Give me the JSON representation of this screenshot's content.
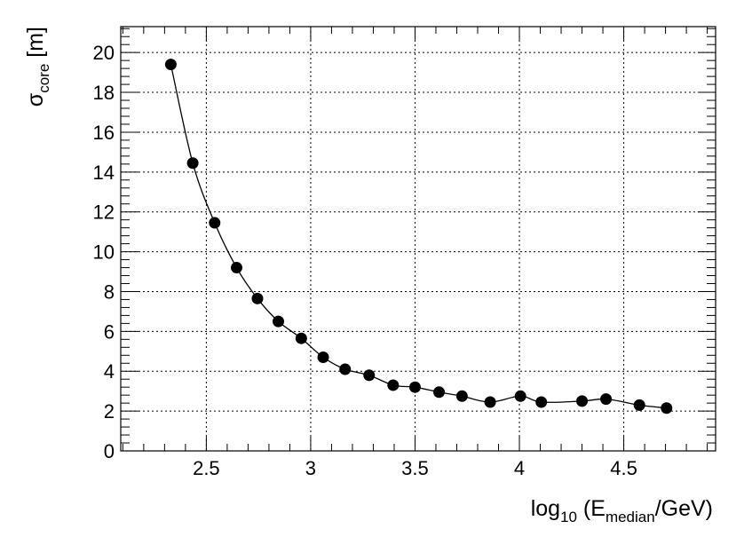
{
  "chart_data": {
    "type": "scatter",
    "title": "",
    "xlabel": {
      "base": "log",
      "sub1": "10",
      "mid": " (E",
      "sub2": "median",
      "end": "/GeV)"
    },
    "ylabel": {
      "base": "σ",
      "sub": "core",
      "end": " [m]"
    },
    "xlim": [
      2.09,
      4.94
    ],
    "ylim": [
      0,
      21.3
    ],
    "grid": true,
    "x_ticks": [
      {
        "value": 2.5,
        "label": "2.5"
      },
      {
        "value": 3.0,
        "label": "3"
      },
      {
        "value": 3.5,
        "label": "3.5"
      },
      {
        "value": 4.0,
        "label": "4"
      },
      {
        "value": 4.5,
        "label": "4.5"
      }
    ],
    "y_ticks": [
      {
        "value": 0,
        "label": "0"
      },
      {
        "value": 2,
        "label": "2"
      },
      {
        "value": 4,
        "label": "4"
      },
      {
        "value": 6,
        "label": "6"
      },
      {
        "value": 8,
        "label": "8"
      },
      {
        "value": 10,
        "label": "10"
      },
      {
        "value": 12,
        "label": "12"
      },
      {
        "value": 14,
        "label": "14"
      },
      {
        "value": 16,
        "label": "16"
      },
      {
        "value": 18,
        "label": "18"
      },
      {
        "value": 20,
        "label": "20"
      }
    ],
    "x_minor_step": 0.1,
    "y_minor_step": 0.4,
    "series": [
      {
        "x": [
          2.33,
          2.435,
          2.54,
          2.645,
          2.745,
          2.845,
          2.955,
          3.06,
          3.165,
          3.28,
          3.395,
          3.5,
          3.615,
          3.725,
          3.86,
          4.005,
          4.105,
          4.3,
          4.415,
          4.575,
          4.705
        ],
        "y": [
          19.4,
          14.45,
          11.45,
          9.2,
          7.65,
          6.5,
          5.65,
          4.7,
          4.1,
          3.8,
          3.3,
          3.2,
          2.95,
          2.75,
          2.45,
          2.75,
          2.45,
          2.5,
          2.6,
          2.3,
          2.15
        ]
      }
    ]
  }
}
